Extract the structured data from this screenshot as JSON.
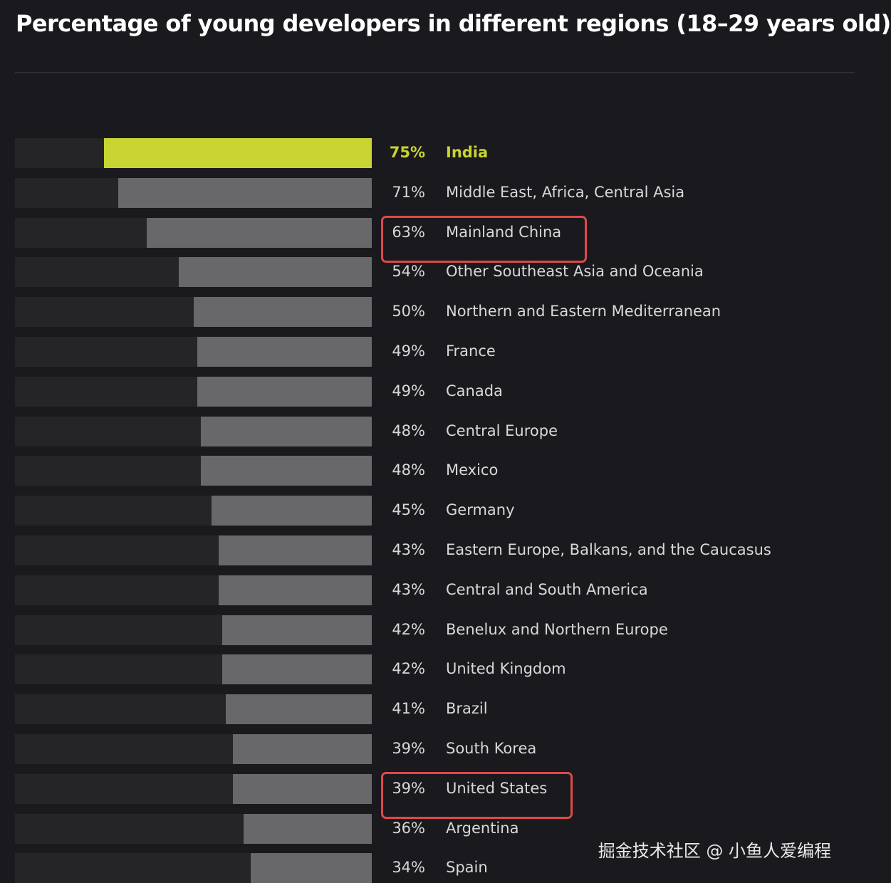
{
  "chart_data": {
    "type": "bar",
    "orientation": "horizontal",
    "title": "Percentage of young developers in different regions (18–29 years old)",
    "xlim": [
      0,
      100
    ],
    "unit": "%",
    "highlight_color": "#c8d431",
    "bar_color": "#68686a",
    "annotation_color": "#e0484a",
    "categories": [
      "India",
      "Middle East, Africa, Central Asia",
      "Mainland China",
      "Other Southeast Asia and Oceania",
      "Northern and Eastern Mediterranean",
      "France",
      "Canada",
      "Central Europe",
      "Mexico",
      "Germany",
      "Eastern Europe, Balkans, and the Caucasus",
      "Central and South America",
      "Benelux and Northern Europe",
      "United Kingdom",
      "Brazil",
      "South Korea",
      "United States",
      "Argentina",
      "Spain"
    ],
    "values": [
      75,
      71,
      63,
      54,
      50,
      49,
      49,
      48,
      48,
      45,
      43,
      43,
      42,
      42,
      41,
      39,
      39,
      36,
      34
    ],
    "labels": [
      "75%",
      "71%",
      "63%",
      "54%",
      "50%",
      "49%",
      "49%",
      "48%",
      "48%",
      "45%",
      "43%",
      "43%",
      "42%",
      "42%",
      "41%",
      "39%",
      "39%",
      "36%",
      "34%"
    ],
    "highlighted": [
      "India"
    ],
    "boxed": [
      "Mainland China",
      "United States"
    ]
  },
  "watermark": "掘金技术社区 @ 小鱼人爱编程"
}
